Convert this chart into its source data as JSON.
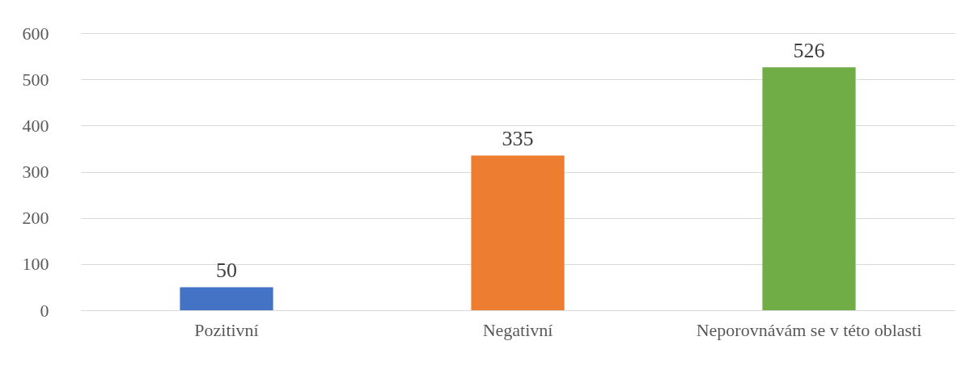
{
  "chart_data": {
    "type": "bar",
    "categories": [
      "Pozitivní",
      "Negativní",
      "Neporovnávám se v této oblasti"
    ],
    "values": [
      50,
      335,
      526
    ],
    "colors": [
      "#4472c4",
      "#ed7d31",
      "#70ad47"
    ],
    "ylim": [
      0,
      600
    ],
    "yticks": [
      0,
      100,
      200,
      300,
      400,
      500,
      600
    ],
    "grid": "y",
    "data_labels": true
  }
}
